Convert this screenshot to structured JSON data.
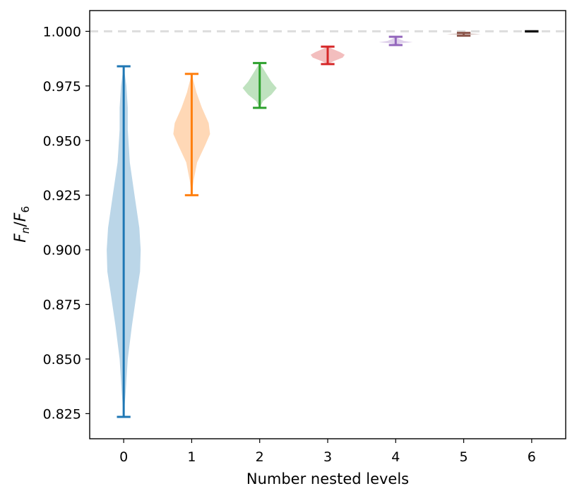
{
  "chart_data": {
    "type": "violin",
    "title": "",
    "xlabel": "Number nested levels",
    "ylabel": {
      "main": "F",
      "sub_num": "n",
      "sep": "/",
      "main2": "F",
      "sub_den": "6"
    },
    "x_ticks": [
      "0",
      "1",
      "2",
      "3",
      "4",
      "5",
      "6"
    ],
    "y_ticks": [
      "0.825",
      "0.850",
      "0.875",
      "0.900",
      "0.925",
      "0.950",
      "0.975",
      "1.000"
    ],
    "y_tick_values": [
      0.825,
      0.85,
      0.875,
      0.9,
      0.925,
      0.95,
      0.975,
      1.0
    ],
    "ylim": [
      0.8135,
      1.0095
    ],
    "xlim": [
      -0.5,
      6.5
    ],
    "reference_line": {
      "y": 1.0,
      "style": "dashed",
      "color": "#dddddd"
    },
    "series": [
      {
        "x": 0,
        "min": 0.8235,
        "max": 0.984,
        "color": "#1f77b4",
        "density": [
          [
            0.8235,
            0.0
          ],
          [
            0.835,
            0.03
          ],
          [
            0.85,
            0.06
          ],
          [
            0.865,
            0.12
          ],
          [
            0.88,
            0.19
          ],
          [
            0.89,
            0.24
          ],
          [
            0.9,
            0.25
          ],
          [
            0.91,
            0.23
          ],
          [
            0.925,
            0.16
          ],
          [
            0.94,
            0.09
          ],
          [
            0.955,
            0.06
          ],
          [
            0.965,
            0.06
          ],
          [
            0.975,
            0.04
          ],
          [
            0.984,
            0.0
          ]
        ]
      },
      {
        "x": 1,
        "min": 0.925,
        "max": 0.9805,
        "color": "#ff7f0e",
        "density": [
          [
            0.925,
            0.0
          ],
          [
            0.932,
            0.03
          ],
          [
            0.94,
            0.08
          ],
          [
            0.948,
            0.2
          ],
          [
            0.953,
            0.27
          ],
          [
            0.958,
            0.25
          ],
          [
            0.965,
            0.15
          ],
          [
            0.972,
            0.07
          ],
          [
            0.9805,
            0.0
          ]
        ]
      },
      {
        "x": 2,
        "min": 0.965,
        "max": 0.9855,
        "color": "#2ca02c",
        "density": [
          [
            0.965,
            0.0
          ],
          [
            0.968,
            0.05
          ],
          [
            0.971,
            0.17
          ],
          [
            0.974,
            0.25
          ],
          [
            0.977,
            0.17
          ],
          [
            0.981,
            0.09
          ],
          [
            0.9855,
            0.0
          ]
        ]
      },
      {
        "x": 3,
        "min": 0.985,
        "max": 0.993,
        "color": "#d62728",
        "density": [
          [
            0.985,
            0.0
          ],
          [
            0.9865,
            0.1
          ],
          [
            0.988,
            0.22
          ],
          [
            0.9893,
            0.25
          ],
          [
            0.9905,
            0.18
          ],
          [
            0.9918,
            0.08
          ],
          [
            0.993,
            0.0
          ]
        ]
      },
      {
        "x": 4,
        "min": 0.9937,
        "max": 0.9975,
        "color": "#9467bd",
        "density": [
          [
            0.9937,
            0.0
          ],
          [
            0.9945,
            0.06
          ],
          [
            0.995,
            0.25
          ],
          [
            0.9956,
            0.12
          ],
          [
            0.9965,
            0.05
          ],
          [
            0.9975,
            0.0
          ]
        ]
      },
      {
        "x": 5,
        "min": 0.998,
        "max": 0.9993,
        "color": "#8c564b",
        "density": [
          [
            0.998,
            0.0
          ],
          [
            0.9984,
            0.12
          ],
          [
            0.9987,
            0.25
          ],
          [
            0.999,
            0.12
          ],
          [
            0.9993,
            0.0
          ]
        ]
      },
      {
        "x": 6,
        "min": 0.99995,
        "max": 1.00005,
        "color": "#111111",
        "density": []
      }
    ]
  }
}
